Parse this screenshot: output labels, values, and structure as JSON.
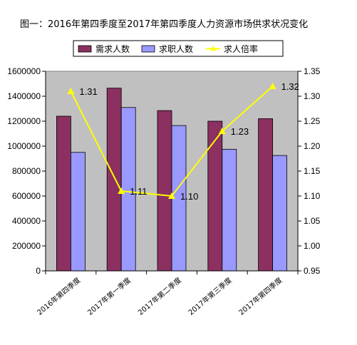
{
  "chart_data": {
    "type": "bar",
    "title": "图一：2016年第四季度至2017年第四季度人力资源市场供求状况变化",
    "categories": [
      "2016年第四季度",
      "2017年第一季度",
      "2017年第二季度",
      "2017年第三季度",
      "2017年第四季度"
    ],
    "series": [
      {
        "name": "需求人数",
        "type": "bar",
        "axis": "left",
        "color": "#8b3060",
        "values": [
          1240000,
          1465000,
          1285000,
          1200000,
          1220000
        ]
      },
      {
        "name": "求职人数",
        "type": "bar",
        "axis": "left",
        "color": "#9999ff",
        "values": [
          950000,
          1310000,
          1165000,
          975000,
          925000
        ]
      },
      {
        "name": "求人倍率",
        "type": "line",
        "axis": "right",
        "color": "#ffff00",
        "values": [
          1.31,
          1.11,
          1.1,
          1.23,
          1.32
        ],
        "labels": [
          "1.31",
          "1.11",
          "1.10",
          "1.23",
          "1.32"
        ]
      }
    ],
    "y_left": {
      "min": 0,
      "max": 1600000,
      "step": 200000,
      "ticks": [
        "0",
        "200000",
        "400000",
        "600000",
        "800000",
        "1000000",
        "1200000",
        "1400000",
        "1600000"
      ]
    },
    "y_right": {
      "min": 0.95,
      "max": 1.35,
      "step": 0.05,
      "ticks": [
        "0.95",
        "1.00",
        "1.05",
        "1.10",
        "1.15",
        "1.20",
        "1.25",
        "1.30",
        "1.35"
      ]
    },
    "plot_background": "#c0c0c0",
    "grid": false,
    "legend_position": "top"
  }
}
